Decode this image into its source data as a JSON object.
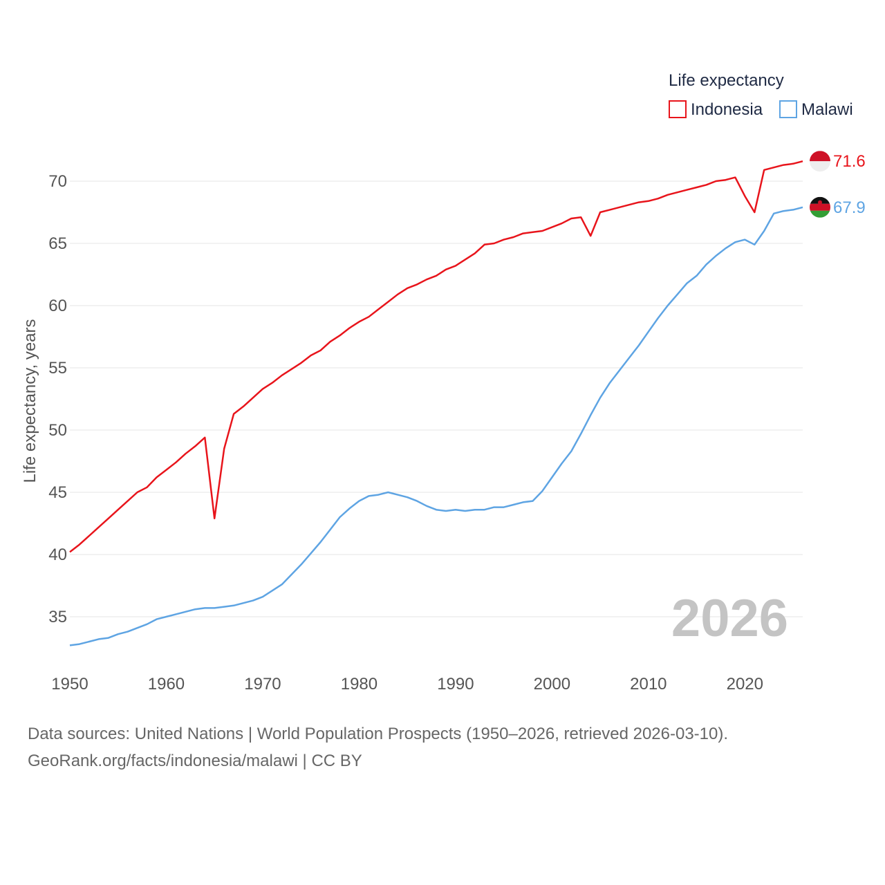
{
  "chart_data": {
    "type": "line",
    "title": "",
    "xlabel": "",
    "ylabel": "Life expectancy, years",
    "xlim": [
      1950,
      2026
    ],
    "ylim": [
      31.5,
      74
    ],
    "x_ticks": [
      1950,
      1960,
      1970,
      1980,
      1990,
      2000,
      2010,
      2020
    ],
    "y_ticks": [
      35,
      40,
      45,
      50,
      55,
      60,
      65,
      70
    ],
    "grid": true,
    "legend": {
      "title": "Life expectancy",
      "position": "top-right"
    },
    "watermark_year": "2026",
    "x": [
      1950,
      1951,
      1952,
      1953,
      1954,
      1955,
      1956,
      1957,
      1958,
      1959,
      1960,
      1961,
      1962,
      1963,
      1964,
      1965,
      1966,
      1967,
      1968,
      1969,
      1970,
      1971,
      1972,
      1973,
      1974,
      1975,
      1976,
      1977,
      1978,
      1979,
      1980,
      1981,
      1982,
      1983,
      1984,
      1985,
      1986,
      1987,
      1988,
      1989,
      1990,
      1991,
      1992,
      1993,
      1994,
      1995,
      1996,
      1997,
      1998,
      1999,
      2000,
      2001,
      2002,
      2003,
      2004,
      2005,
      2006,
      2007,
      2008,
      2009,
      2010,
      2011,
      2012,
      2013,
      2014,
      2015,
      2016,
      2017,
      2018,
      2019,
      2020,
      2021,
      2022,
      2023,
      2024,
      2025,
      2026
    ],
    "series": [
      {
        "name": "Indonesia",
        "color": "#e8141b",
        "end_label": "71.6",
        "flag": "indonesia-flag-icon",
        "values": [
          40.2,
          40.8,
          41.5,
          42.2,
          42.9,
          43.6,
          44.3,
          45.0,
          45.4,
          46.2,
          46.8,
          47.4,
          48.1,
          48.7,
          49.4,
          42.9,
          48.5,
          51.3,
          51.9,
          52.6,
          53.3,
          53.8,
          54.4,
          54.9,
          55.4,
          56.0,
          56.4,
          57.1,
          57.6,
          58.2,
          58.7,
          59.1,
          59.7,
          60.3,
          60.9,
          61.4,
          61.7,
          62.1,
          62.4,
          62.9,
          63.2,
          63.7,
          64.2,
          64.9,
          65.0,
          65.3,
          65.5,
          65.8,
          65.9,
          66.0,
          66.3,
          66.6,
          67.0,
          67.1,
          65.6,
          67.5,
          67.7,
          67.9,
          68.1,
          68.3,
          68.4,
          68.6,
          68.9,
          69.1,
          69.3,
          69.5,
          69.7,
          70.0,
          70.1,
          70.3,
          68.8,
          67.5,
          70.9,
          71.1,
          71.3,
          71.4,
          71.6
        ]
      },
      {
        "name": "Malawi",
        "color": "#5ea4e3",
        "end_label": "67.9",
        "flag": "malawi-flag-icon",
        "values": [
          32.7,
          32.8,
          33.0,
          33.2,
          33.3,
          33.6,
          33.8,
          34.1,
          34.4,
          34.8,
          35.0,
          35.2,
          35.4,
          35.6,
          35.7,
          35.7,
          35.8,
          35.9,
          36.1,
          36.3,
          36.6,
          37.1,
          37.6,
          38.4,
          39.2,
          40.1,
          41.0,
          42.0,
          43.0,
          43.7,
          44.3,
          44.7,
          44.8,
          45.0,
          44.8,
          44.6,
          44.3,
          43.9,
          43.6,
          43.5,
          43.6,
          43.5,
          43.6,
          43.6,
          43.8,
          43.8,
          44.0,
          44.2,
          44.3,
          45.1,
          46.2,
          47.3,
          48.3,
          49.7,
          51.2,
          52.6,
          53.8,
          54.8,
          55.8,
          56.8,
          57.9,
          59.0,
          60.0,
          60.9,
          61.8,
          62.4,
          63.3,
          64.0,
          64.6,
          65.1,
          65.3,
          64.9,
          66.0,
          67.4,
          67.6,
          67.7,
          67.9
        ]
      }
    ]
  },
  "source": {
    "line1": "Data sources: United Nations | World Population Prospects (1950–2026, retrieved 2026-03-10).",
    "line2": "GeoRank.org/facts/indonesia/malawi | CC BY"
  }
}
